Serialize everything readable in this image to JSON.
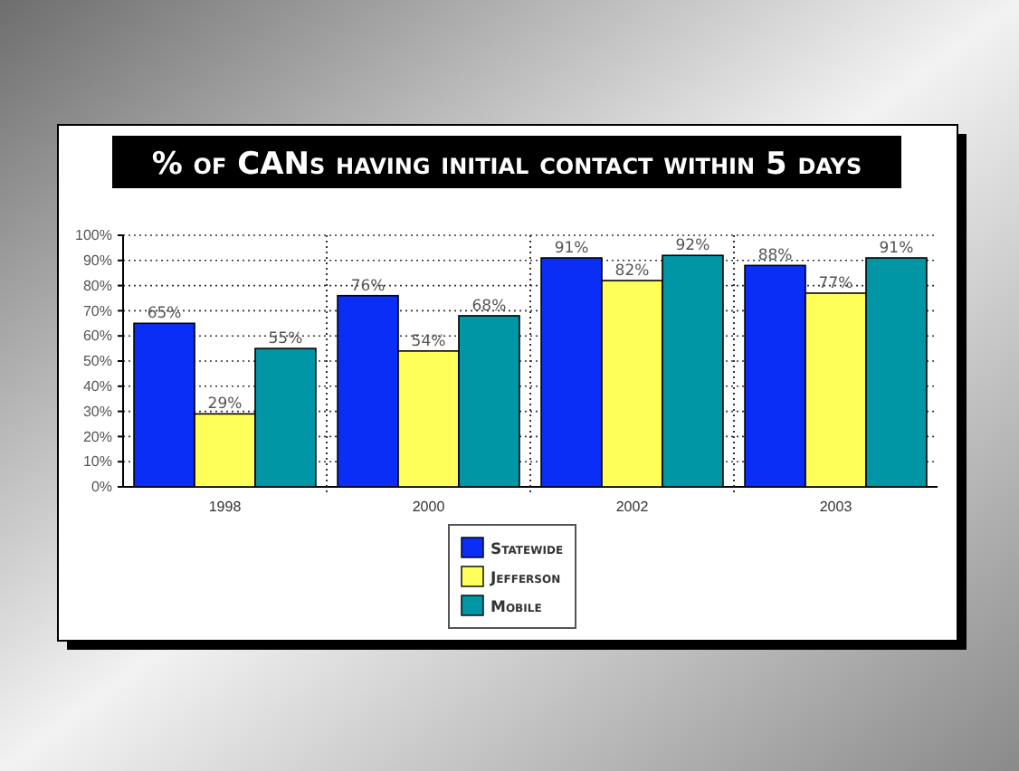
{
  "chart_data": {
    "type": "bar",
    "title": "% of CANs having initial contact within 5 days",
    "categories": [
      "1998",
      "2000",
      "2002",
      "2003"
    ],
    "series": [
      {
        "name": "Statewide",
        "color": "#0a2ef5",
        "values": [
          65,
          76,
          91,
          88
        ]
      },
      {
        "name": "Jefferson",
        "color": "#ffff5a",
        "values": [
          29,
          54,
          82,
          77
        ]
      },
      {
        "name": "Mobile",
        "color": "#0096a5",
        "values": [
          55,
          68,
          92,
          91
        ]
      }
    ],
    "ylim": [
      0,
      100
    ],
    "yticks": [
      {
        "value": 0,
        "label": "0%"
      },
      {
        "value": 10,
        "label": "10%"
      },
      {
        "value": 20,
        "label": "20%"
      },
      {
        "value": 30,
        "label": "30%"
      },
      {
        "value": 40,
        "label": "40%"
      },
      {
        "value": 50,
        "label": "50%"
      },
      {
        "value": 60,
        "label": "60%"
      },
      {
        "value": 70,
        "label": "70%"
      },
      {
        "value": 80,
        "label": "80%"
      },
      {
        "value": 90,
        "label": "90%"
      },
      {
        "value": 100,
        "label": "100%"
      }
    ],
    "value_labels": [
      [
        "65%",
        "76%",
        "91%",
        "88%"
      ],
      [
        "29%",
        "54%",
        "82%",
        "77%"
      ],
      [
        "55%",
        "68%",
        "92%",
        "91%"
      ]
    ],
    "grid": "y",
    "legend": "bottom"
  }
}
